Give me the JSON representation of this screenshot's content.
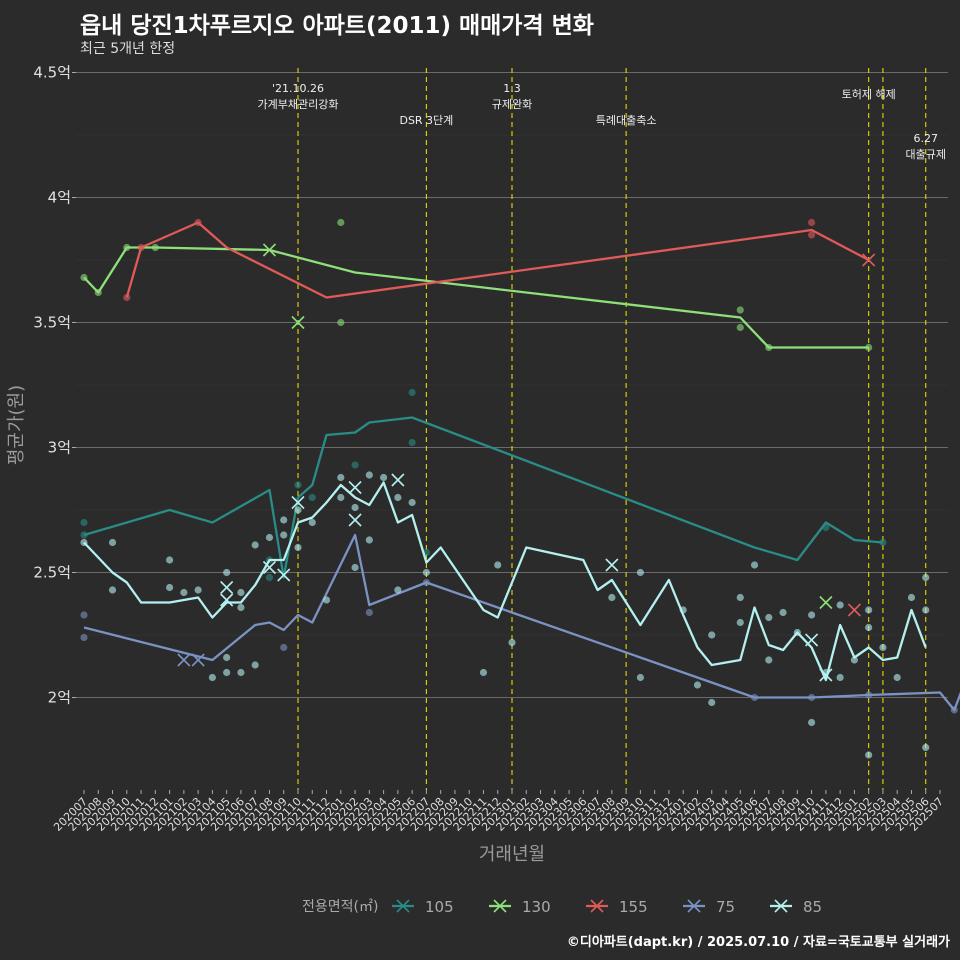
{
  "title": "읍내 당진1차푸르지오 아파트(2011) 매매가격 변화",
  "subtitle": "최근 5개년 한정",
  "caption": "©디아파트(dapt.kr) / 2025.07.10 / 자료=국토교통부 실거래가",
  "chart_data": {
    "type": "line",
    "xlabel": "거래년월",
    "ylabel": "평균가(원)",
    "ylim": [
      1.63,
      4.55
    ],
    "yticks": [
      2,
      2.5,
      3,
      3.5,
      4,
      4.5
    ],
    "ytick_labels": [
      "2억",
      "2.5억",
      "3억",
      "3.5억",
      "4억",
      "4.5억"
    ],
    "categories": [
      "202007",
      "202008",
      "202009",
      "202010",
      "202011",
      "202012",
      "202101",
      "202102",
      "202103",
      "202104",
      "202105",
      "202106",
      "202107",
      "202108",
      "202109",
      "202110",
      "202111",
      "202112",
      "202201",
      "202202",
      "202203",
      "202204",
      "202205",
      "202206",
      "202207",
      "202208",
      "202209",
      "202210",
      "202211",
      "202212",
      "202301",
      "202302",
      "202303",
      "202304",
      "202305",
      "202306",
      "202307",
      "202308",
      "202309",
      "202310",
      "202311",
      "202312",
      "202401",
      "202402",
      "202403",
      "202404",
      "202405",
      "202406",
      "202407",
      "202408",
      "202409",
      "202410",
      "202411",
      "202412",
      "202501",
      "202502",
      "202503",
      "202504",
      "202505",
      "202506",
      "202507"
    ],
    "legend_title": "전용면적(㎡)",
    "legend_position": "bottom",
    "grid": true,
    "events": [
      {
        "month": "202110",
        "label": "'21.10.26 가계부채관리강화",
        "lines": [
          "'21.10.26",
          "가계부채관리강화"
        ],
        "tier": 0
      },
      {
        "month": "202207",
        "label": "DSR 3단계",
        "lines": [
          "DSR 3단계"
        ],
        "tier": 2
      },
      {
        "month": "202301",
        "label": "1.3 규제완화",
        "lines": [
          "1.3",
          "규제완화"
        ],
        "tier": 0
      },
      {
        "month": "202309",
        "label": "특례대출축소",
        "lines": [
          "특례대출축소"
        ],
        "tier": 2
      },
      {
        "month": "202502",
        "label": "토허제 해제",
        "lines": [
          "토허제 해제"
        ],
        "tier": 1
      },
      {
        "month": "202503",
        "label": "",
        "lines": [],
        "tier": 1
      },
      {
        "month": "202506",
        "label": "6.27 대출규제",
        "lines": [
          "6.27",
          "대출규제"
        ],
        "tier": 3
      }
    ],
    "series": [
      {
        "name": "105",
        "color": "#2a8c86",
        "line": [
          [
            "202007",
            2.65
          ],
          [
            "202101",
            2.75
          ],
          [
            "202104",
            2.7
          ],
          [
            "202108",
            2.83
          ],
          [
            "202109",
            2.48
          ],
          [
            "202110",
            2.8
          ],
          [
            "202111",
            2.85
          ],
          [
            "202112",
            3.05
          ],
          [
            "202202",
            3.06
          ],
          [
            "202203",
            3.1
          ],
          [
            "202206",
            3.12
          ],
          [
            "202406",
            2.6
          ],
          [
            "202409",
            2.55
          ],
          [
            "202411",
            2.7
          ],
          [
            "202501",
            2.63
          ],
          [
            "202503",
            2.62
          ]
        ],
        "points": [
          [
            "202007",
            2.7
          ],
          [
            "202007",
            2.65
          ],
          [
            "202108",
            2.48
          ],
          [
            "202108",
            2.55
          ],
          [
            "202110",
            2.85
          ],
          [
            "202111",
            2.8
          ],
          [
            "202202",
            2.93
          ],
          [
            "202206",
            3.22
          ],
          [
            "202206",
            3.02
          ],
          [
            "202207",
            2.58
          ],
          [
            "202411",
            2.68
          ],
          [
            "202503",
            2.62
          ]
        ],
        "x_marks": []
      },
      {
        "name": "130",
        "color": "#8ee07a",
        "line": [
          [
            "202007",
            3.68
          ],
          [
            "202008",
            3.62
          ],
          [
            "202010",
            3.8
          ],
          [
            "202012",
            3.8
          ],
          [
            "202108",
            3.79
          ],
          [
            "202202",
            3.7
          ],
          [
            "202405",
            3.52
          ],
          [
            "202407",
            3.4
          ],
          [
            "202502",
            3.4
          ]
        ],
        "points": [
          [
            "202007",
            3.68
          ],
          [
            "202008",
            3.62
          ],
          [
            "202010",
            3.8
          ],
          [
            "202012",
            3.8
          ],
          [
            "202201",
            3.9
          ],
          [
            "202201",
            3.5
          ],
          [
            "202405",
            3.55
          ],
          [
            "202405",
            3.48
          ],
          [
            "202407",
            3.4
          ],
          [
            "202502",
            3.4
          ]
        ],
        "x_marks": [
          [
            "202108",
            3.79
          ],
          [
            "202110",
            3.5
          ]
        ]
      },
      {
        "name": "155",
        "color": "#e05a5a",
        "line": [
          [
            "202010",
            3.6
          ],
          [
            "202011",
            3.8
          ],
          [
            "202103",
            3.9
          ],
          [
            "202105",
            3.8
          ],
          [
            "202112",
            3.6
          ],
          [
            "202410",
            3.87
          ],
          [
            "202502",
            3.75
          ]
        ],
        "points": [
          [
            "202010",
            3.6
          ],
          [
            "202011",
            3.8
          ],
          [
            "202103",
            3.9
          ],
          [
            "202410",
            3.9
          ],
          [
            "202410",
            3.85
          ]
        ],
        "x_marks": [
          [
            "202502",
            3.75
          ]
        ]
      },
      {
        "name": "75",
        "color": "#7b93c4",
        "line": [
          [
            "202007",
            2.28
          ],
          [
            "202104",
            2.15
          ],
          [
            "202107",
            2.29
          ],
          [
            "202108",
            2.3
          ],
          [
            "202109",
            2.27
          ],
          [
            "202110",
            2.33
          ],
          [
            "202111",
            2.3
          ],
          [
            "202202",
            2.65
          ],
          [
            "202203",
            2.37
          ],
          [
            "202207",
            2.46
          ],
          [
            "202406",
            2.0
          ],
          [
            "202410",
            2.0
          ],
          [
            "202502",
            2.01
          ],
          [
            "202507",
            2.02
          ],
          [
            "202508",
            1.95
          ],
          [
            "202509",
            2.1
          ]
        ],
        "points": [
          [
            "202007",
            2.24
          ],
          [
            "202007",
            2.33
          ],
          [
            "202109",
            2.2
          ],
          [
            "202203",
            2.34
          ],
          [
            "202207",
            2.46
          ],
          [
            "202406",
            2.0
          ],
          [
            "202410",
            2.0
          ],
          [
            "202502",
            2.01
          ],
          [
            "202508",
            1.95
          ],
          [
            "202509",
            2.1
          ]
        ],
        "x_marks": [
          [
            "202102",
            2.15
          ],
          [
            "202103",
            2.15
          ]
        ]
      },
      {
        "name": "85",
        "color": "#b5f0f0",
        "line": [
          [
            "202007",
            2.62
          ],
          [
            "202009",
            2.5
          ],
          [
            "202010",
            2.46
          ],
          [
            "202011",
            2.38
          ],
          [
            "202101",
            2.38
          ],
          [
            "202103",
            2.4
          ],
          [
            "202104",
            2.32
          ],
          [
            "202105",
            2.38
          ],
          [
            "202106",
            2.38
          ],
          [
            "202107",
            2.45
          ],
          [
            "202108",
            2.55
          ],
          [
            "202109",
            2.55
          ],
          [
            "202110",
            2.7
          ],
          [
            "202111",
            2.72
          ],
          [
            "202112",
            2.78
          ],
          [
            "202201",
            2.85
          ],
          [
            "202202",
            2.8
          ],
          [
            "202203",
            2.77
          ],
          [
            "202204",
            2.86
          ],
          [
            "202205",
            2.7
          ],
          [
            "202206",
            2.73
          ],
          [
            "202207",
            2.54
          ],
          [
            "202208",
            2.6
          ],
          [
            "202211",
            2.35
          ],
          [
            "202212",
            2.32
          ],
          [
            "202302",
            2.6
          ],
          [
            "202306",
            2.55
          ],
          [
            "202307",
            2.43
          ],
          [
            "202308",
            2.47
          ],
          [
            "202310",
            2.29
          ],
          [
            "202312",
            2.47
          ],
          [
            "202401",
            2.33
          ],
          [
            "202402",
            2.2
          ],
          [
            "202403",
            2.13
          ],
          [
            "202405",
            2.15
          ],
          [
            "202406",
            2.36
          ],
          [
            "202407",
            2.21
          ],
          [
            "202408",
            2.19
          ],
          [
            "202409",
            2.26
          ],
          [
            "202410",
            2.2
          ],
          [
            "202411",
            2.07
          ],
          [
            "202412",
            2.29
          ],
          [
            "202501",
            2.16
          ],
          [
            "202502",
            2.2
          ],
          [
            "202503",
            2.15
          ],
          [
            "202504",
            2.16
          ],
          [
            "202505",
            2.35
          ],
          [
            "202506",
            2.2
          ]
        ],
        "points": [
          [
            "202007",
            2.62
          ],
          [
            "202009",
            2.62
          ],
          [
            "202009",
            2.43
          ],
          [
            "202101",
            2.55
          ],
          [
            "202101",
            2.44
          ],
          [
            "202102",
            2.42
          ],
          [
            "202103",
            2.43
          ],
          [
            "202104",
            2.08
          ],
          [
            "202105",
            2.1
          ],
          [
            "202105",
            2.16
          ],
          [
            "202105",
            2.5
          ],
          [
            "202106",
            2.1
          ],
          [
            "202106",
            2.42
          ],
          [
            "202106",
            2.36
          ],
          [
            "202107",
            2.61
          ],
          [
            "202107",
            2.13
          ],
          [
            "202108",
            2.64
          ],
          [
            "202109",
            2.65
          ],
          [
            "202109",
            2.71
          ],
          [
            "202110",
            2.6
          ],
          [
            "202110",
            2.75
          ],
          [
            "202111",
            2.7
          ],
          [
            "202112",
            2.39
          ],
          [
            "202201",
            2.8
          ],
          [
            "202201",
            2.88
          ],
          [
            "202202",
            2.76
          ],
          [
            "202202",
            2.52
          ],
          [
            "202203",
            2.63
          ],
          [
            "202203",
            2.89
          ],
          [
            "202204",
            2.88
          ],
          [
            "202205",
            2.8
          ],
          [
            "202205",
            2.43
          ],
          [
            "202206",
            2.78
          ],
          [
            "202207",
            2.5
          ],
          [
            "202211",
            2.1
          ],
          [
            "202212",
            2.53
          ],
          [
            "202301",
            2.22
          ],
          [
            "202308",
            2.4
          ],
          [
            "202310",
            2.5
          ],
          [
            "202310",
            2.08
          ],
          [
            "202401",
            2.35
          ],
          [
            "202402",
            2.05
          ],
          [
            "202403",
            2.25
          ],
          [
            "202403",
            1.98
          ],
          [
            "202405",
            2.4
          ],
          [
            "202405",
            2.3
          ],
          [
            "202406",
            2.53
          ],
          [
            "202407",
            2.32
          ],
          [
            "202407",
            2.15
          ],
          [
            "202408",
            2.34
          ],
          [
            "202409",
            2.26
          ],
          [
            "202410",
            2.33
          ],
          [
            "202410",
            1.9
          ],
          [
            "202411",
            2.1
          ],
          [
            "202412",
            2.37
          ],
          [
            "202412",
            2.08
          ],
          [
            "202501",
            2.15
          ],
          [
            "202502",
            2.35
          ],
          [
            "202502",
            2.28
          ],
          [
            "202502",
            1.77
          ],
          [
            "202503",
            2.2
          ],
          [
            "202504",
            2.08
          ],
          [
            "202505",
            2.4
          ],
          [
            "202506",
            2.48
          ],
          [
            "202506",
            1.8
          ],
          [
            "202506",
            2.35
          ]
        ],
        "x_marks": [
          [
            "202105",
            2.39
          ],
          [
            "202105",
            2.44
          ],
          [
            "202108",
            2.52
          ],
          [
            "202109",
            2.49
          ],
          [
            "202110",
            2.78
          ],
          [
            "202202",
            2.84
          ],
          [
            "202202",
            2.71
          ],
          [
            "202205",
            2.87
          ],
          [
            "202308",
            2.53
          ],
          [
            "202410",
            2.23
          ],
          [
            "202411",
            2.09
          ]
        ]
      }
    ],
    "extra_x_marks": [
      {
        "series": "130",
        "month": "202411",
        "value": 2.38
      },
      {
        "series": "155",
        "month": "202501",
        "value": 2.35
      }
    ]
  }
}
